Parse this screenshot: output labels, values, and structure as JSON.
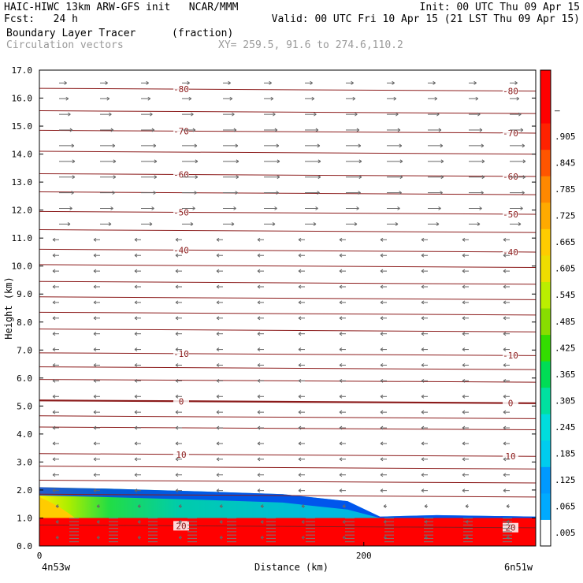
{
  "header": {
    "line1_left": "HAIC-HIWC 13km ARW-GFS init   NCAR/MMM",
    "line1_right": "Init: 00 UTC Thu 09 Apr 15",
    "line2_left": "Fcst:   24 h",
    "line2_right": "Valid: 00 UTC Fri 10 Apr 15 (21 LST Thu 09 Apr 15)",
    "field_name": "Boundary Layer Tracer",
    "field_units": "(fraction)",
    "vector_name": "Circulation vectors",
    "xy_info": "XY= 259.5, 91.6 to 274.6,110.2"
  },
  "chart_data": {
    "type": "heatmap",
    "xlabel": "Distance (km)",
    "ylabel": "Height (km)",
    "xlim": [
      0,
      306
    ],
    "ylim": [
      0,
      17
    ],
    "x_ticks": [
      0,
      200
    ],
    "x_end_labels": {
      "left": "4n53w",
      "right": "6n51w"
    },
    "y_ticks": [
      "0.0",
      "1.0",
      "2.0",
      "3.0",
      "4.0",
      "5.0",
      "6.0",
      "7.0",
      "8.0",
      "9.0",
      "10.0",
      "11.0",
      "12.0",
      "13.0",
      "14.0",
      "15.0",
      "16.0",
      "17.0"
    ],
    "colorbar": {
      "labels": [
        ".005",
        ".065",
        ".125",
        ".185",
        ".245",
        ".305",
        ".365",
        ".425",
        ".485",
        ".545",
        ".605",
        ".665",
        ".725",
        ".785",
        ".845",
        ".905",
        "–"
      ],
      "colors": [
        "#ffffff",
        "#00aaff",
        "#0099ff",
        "#00ccee",
        "#00dddd",
        "#00e0a0",
        "#00dd55",
        "#33dd00",
        "#88dd00",
        "#bbee00",
        "#eedd00",
        "#ffcc00",
        "#ffaa00",
        "#ff8800",
        "#ff5500",
        "#ff2200",
        "#ff0000",
        "#ff0000"
      ]
    },
    "temperature_contours": {
      "labeled": [
        {
          "value": "-80",
          "y": 16.35
        },
        {
          "value": "-70",
          "y": 14.85
        },
        {
          "value": "-60",
          "y": 13.3
        },
        {
          "value": "-50",
          "y": 11.95
        },
        {
          "value": "-40",
          "y": 10.6
        },
        {
          "value": "-10",
          "y": 6.9
        },
        {
          "value": "0",
          "y": 5.2
        },
        {
          "value": "10",
          "y": 3.3
        },
        {
          "value": "20",
          "y": 0.75
        }
      ],
      "unlabeled_y": [
        15.55,
        14.1,
        12.65,
        11.3,
        10.05,
        9.45,
        8.9,
        8.35,
        7.75,
        6.4,
        5.95,
        4.65,
        4.25,
        2.85,
        2.35,
        1.85
      ]
    },
    "tracer_layer": {
      "red_top_km": 1.0,
      "mixed_layer_top_km": [
        [
          0,
          2.1
        ],
        [
          40,
          2.05
        ],
        [
          100,
          1.95
        ],
        [
          150,
          1.85
        ],
        [
          190,
          1.6
        ],
        [
          210,
          1.05
        ],
        [
          245,
          1.1
        ],
        [
          306,
          1.05
        ]
      ]
    },
    "grid": false,
    "legend": "colorbar-right"
  }
}
